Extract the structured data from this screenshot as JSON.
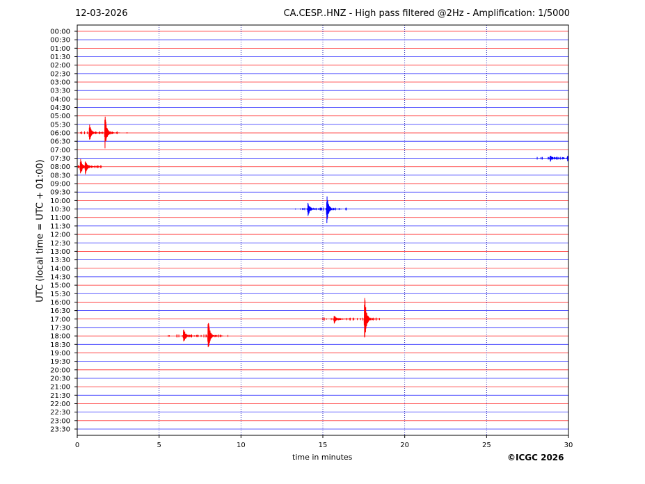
{
  "header": {
    "date": "12-03-2026",
    "title": "CA.CESP..HNZ - High pass filtered @2Hz - Amplification: 1/5000"
  },
  "footer": {
    "copyright": "©ICGC 2026"
  },
  "chart_data": {
    "type": "line",
    "title": "CA.CESP..HNZ - High pass filtered @2Hz - Amplification: 1/5000",
    "xlabel": "time in minutes",
    "ylabel": "UTC (local time = UTC + 01:00)",
    "xlim": [
      0,
      30
    ],
    "x_ticks": [
      0,
      5,
      10,
      15,
      20,
      25,
      30
    ],
    "grid": "vertical dotted at x ticks",
    "trace_colors": [
      "#ff0000",
      "#0000ff"
    ],
    "rows": [
      "00:00",
      "00:30",
      "01:00",
      "01:30",
      "02:00",
      "02:30",
      "03:00",
      "03:30",
      "04:00",
      "04:30",
      "05:00",
      "05:30",
      "06:00",
      "06:30",
      "07:00",
      "07:30",
      "08:00",
      "08:30",
      "09:00",
      "09:30",
      "10:00",
      "10:30",
      "11:00",
      "11:30",
      "12:00",
      "12:30",
      "13:00",
      "13:30",
      "14:00",
      "14:30",
      "15:00",
      "15:30",
      "16:00",
      "16:30",
      "17:00",
      "17:30",
      "18:00",
      "18:30",
      "19:00",
      "19:30",
      "20:00",
      "20:30",
      "21:00",
      "21:30",
      "22:00",
      "22:30",
      "23:00",
      "23:30"
    ],
    "events": [
      {
        "row": "06:00",
        "minute": 0.8,
        "amplitude": 1.0
      },
      {
        "row": "06:00",
        "minute": 1.75,
        "amplitude": 1.8
      },
      {
        "row": "08:00",
        "minute": 0.25,
        "amplitude": 1.0
      },
      {
        "row": "08:00",
        "minute": 0.55,
        "amplitude": 0.8
      },
      {
        "row": "07:30",
        "minute": 28.95,
        "amplitude": 0.35
      },
      {
        "row": "07:30",
        "minute": 30.0,
        "amplitude": 0.3
      },
      {
        "row": "10:30",
        "minute": 14.15,
        "amplitude": 0.8
      },
      {
        "row": "10:30",
        "minute": 15.3,
        "amplitude": 1.4
      },
      {
        "row": "17:00",
        "minute": 15.75,
        "amplitude": 0.55
      },
      {
        "row": "17:00",
        "minute": 17.6,
        "amplitude": 2.5
      },
      {
        "row": "18:00",
        "minute": 6.55,
        "amplitude": 0.9
      },
      {
        "row": "18:00",
        "minute": 8.05,
        "amplitude": 1.7
      }
    ]
  }
}
